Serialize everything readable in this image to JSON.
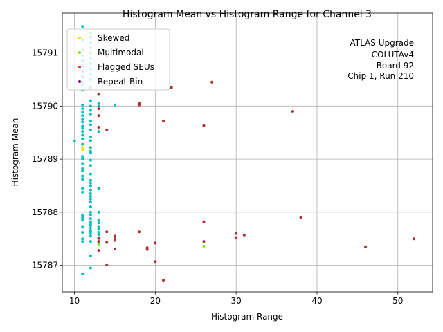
{
  "chart_data": {
    "type": "scatter",
    "title": "Histogram Mean vs Histogram Range for Channel 3",
    "xlabel": "Histogram Range",
    "ylabel": "Histogram Mean",
    "xlim": [
      8.5,
      54.3
    ],
    "ylim": [
      15786.5,
      15791.75
    ],
    "xticks": [
      10,
      20,
      30,
      40,
      50
    ],
    "yticks": [
      15787,
      15788,
      15789,
      15790,
      15791
    ],
    "grid": true,
    "legend_position": "top-left",
    "annotation": [
      "ATLAS Upgrade",
      "COLUTAv4",
      "Board 92",
      "Chip 1, Run 210"
    ],
    "series": [
      {
        "name": "",
        "color": "#00bfbf",
        "points": [
          [
            11,
            15791.5
          ],
          [
            12,
            15791.38
          ],
          [
            12,
            15791.3
          ],
          [
            12,
            15791.2
          ],
          [
            11,
            15791.25
          ],
          [
            12,
            15791.1
          ],
          [
            11,
            15791.05
          ],
          [
            12,
            15791.0
          ],
          [
            11,
            15790.95
          ],
          [
            12,
            15790.9
          ],
          [
            11,
            15790.85
          ],
          [
            12,
            15790.8
          ],
          [
            11,
            15790.75
          ],
          [
            12,
            15790.7
          ],
          [
            11,
            15790.65
          ],
          [
            12,
            15790.6
          ],
          [
            11,
            15790.55
          ],
          [
            12,
            15790.5
          ],
          [
            11,
            15790.45
          ],
          [
            11,
            15790.4
          ],
          [
            12,
            15790.35
          ],
          [
            11,
            15790.3
          ],
          [
            12,
            15790.1
          ],
          [
            11,
            15790.02
          ],
          [
            12,
            15790.0
          ],
          [
            13,
            15790.05
          ],
          [
            13,
            15790.0
          ],
          [
            15,
            15790.02
          ],
          [
            11,
            15789.95
          ],
          [
            12,
            15789.92
          ],
          [
            11,
            15789.88
          ],
          [
            12,
            15789.85
          ],
          [
            11,
            15789.82
          ],
          [
            11,
            15789.75
          ],
          [
            12,
            15789.72
          ],
          [
            11,
            15789.7
          ],
          [
            12,
            15789.65
          ],
          [
            11,
            15789.62
          ],
          [
            11,
            15789.58
          ],
          [
            12,
            15789.55
          ],
          [
            11,
            15789.52
          ],
          [
            13,
            15789.52
          ],
          [
            11,
            15789.45
          ],
          [
            12,
            15789.42
          ],
          [
            11,
            15789.38
          ],
          [
            12,
            15789.35
          ],
          [
            10,
            15789.34
          ],
          [
            11,
            15789.28
          ],
          [
            12,
            15789.22
          ],
          [
            12,
            15789.15
          ],
          [
            12,
            15789.12
          ],
          [
            11,
            15789.05
          ],
          [
            11,
            15789.0
          ],
          [
            12,
            15788.98
          ],
          [
            11,
            15788.92
          ],
          [
            12,
            15788.88
          ],
          [
            11,
            15788.82
          ],
          [
            11,
            15788.78
          ],
          [
            12,
            15788.72
          ],
          [
            11,
            15788.68
          ],
          [
            11,
            15788.62
          ],
          [
            12,
            15788.6
          ],
          [
            12,
            15788.55
          ],
          [
            12,
            15788.5
          ],
          [
            11,
            15788.45
          ],
          [
            13,
            15788.45
          ],
          [
            12,
            15788.42
          ],
          [
            11,
            15788.38
          ],
          [
            12,
            15788.35
          ],
          [
            12,
            15788.3
          ],
          [
            12,
            15788.25
          ],
          [
            12,
            15788.2
          ],
          [
            12,
            15788.1
          ],
          [
            12,
            15788.0
          ],
          [
            13,
            15788.0
          ],
          [
            11,
            15787.95
          ],
          [
            12,
            15787.95
          ],
          [
            11,
            15787.9
          ],
          [
            12,
            15787.88
          ],
          [
            11,
            15787.85
          ],
          [
            12,
            15787.82
          ],
          [
            13,
            15787.85
          ],
          [
            13,
            15787.8
          ],
          [
            12,
            15787.78
          ],
          [
            12,
            15787.75
          ],
          [
            11,
            15787.72
          ],
          [
            13,
            15787.72
          ],
          [
            12,
            15787.7
          ],
          [
            13,
            15787.68
          ],
          [
            12,
            15787.65
          ],
          [
            11,
            15787.62
          ],
          [
            13,
            15787.62
          ],
          [
            12,
            15787.6
          ],
          [
            13,
            15787.58
          ],
          [
            12,
            15787.55
          ],
          [
            11,
            15787.5
          ],
          [
            13,
            15787.5
          ],
          [
            11,
            15787.45
          ],
          [
            12,
            15787.45
          ],
          [
            13,
            15787.42
          ],
          [
            12,
            15787.18
          ],
          [
            12,
            15786.95
          ],
          [
            11,
            15786.84
          ]
        ]
      },
      {
        "name": "Skewed",
        "color": "#e6e600",
        "points": [
          [
            11,
            15789.22
          ],
          [
            11,
            15789.18
          ]
        ]
      },
      {
        "name": "Multimodal",
        "color": "#7fe600",
        "points": [
          [
            13,
            15787.4
          ],
          [
            26,
            15787.36
          ]
        ]
      },
      {
        "name": "Flagged SEUs",
        "color": "#b03030",
        "points": [
          [
            14,
            15790.95
          ],
          [
            16,
            15790.5
          ],
          [
            22,
            15790.35
          ],
          [
            27,
            15790.45
          ],
          [
            13,
            15790.22
          ],
          [
            18,
            15790.05
          ],
          [
            18,
            15790.02
          ],
          [
            13,
            15789.95
          ],
          [
            13,
            15789.82
          ],
          [
            21,
            15789.72
          ],
          [
            26,
            15789.63
          ],
          [
            37,
            15789.9
          ],
          [
            13,
            15789.6
          ],
          [
            14,
            15789.55
          ],
          [
            38,
            15787.9
          ],
          [
            26,
            15787.82
          ],
          [
            18,
            15787.63
          ],
          [
            14,
            15787.63
          ],
          [
            30,
            15787.6
          ],
          [
            31,
            15787.57
          ],
          [
            15,
            15787.55
          ],
          [
            13,
            15787.52
          ],
          [
            30,
            15787.52
          ],
          [
            15,
            15787.5
          ],
          [
            52,
            15787.5
          ],
          [
            15,
            15787.47
          ],
          [
            13,
            15787.45
          ],
          [
            26,
            15787.45
          ],
          [
            14,
            15787.43
          ],
          [
            20,
            15787.42
          ],
          [
            46,
            15787.35
          ],
          [
            15,
            15787.31
          ],
          [
            19,
            15787.33
          ],
          [
            19,
            15787.3
          ],
          [
            13,
            15787.28
          ],
          [
            20,
            15787.07
          ],
          [
            14,
            15787.01
          ],
          [
            21,
            15786.72
          ]
        ]
      },
      {
        "name": "Repeat Bin",
        "color": "#800080",
        "points": []
      }
    ]
  }
}
